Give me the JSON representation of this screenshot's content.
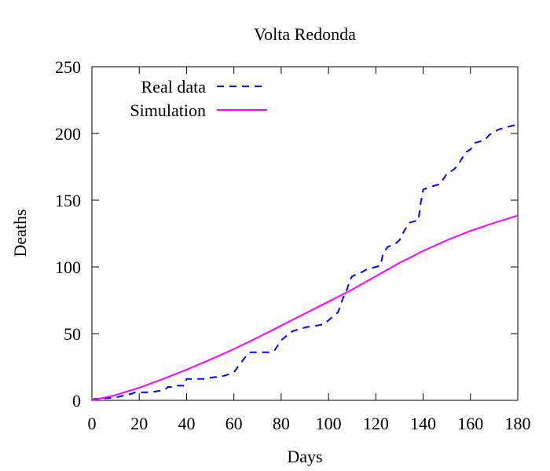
{
  "chart_data": {
    "type": "line",
    "title": "Volta Redonda",
    "xlabel": "Days",
    "ylabel": "Deaths",
    "xlim": [
      0,
      180
    ],
    "ylim": [
      0,
      250
    ],
    "xticks": [
      0,
      20,
      40,
      60,
      80,
      100,
      120,
      140,
      160,
      180
    ],
    "yticks": [
      0,
      50,
      100,
      150,
      200,
      250
    ],
    "grid": false,
    "legend_position": "top-left",
    "series": [
      {
        "name": "Real data",
        "style": "dashed",
        "color": "#0000ff",
        "x": [
          0,
          1,
          10,
          12,
          17,
          18,
          24,
          25,
          31,
          32,
          35,
          36,
          39,
          40,
          48,
          50,
          55,
          57,
          60,
          62,
          66,
          67,
          75,
          77,
          80,
          82,
          85,
          87,
          91,
          95,
          98,
          100,
          102,
          104,
          106,
          108,
          109,
          110,
          114,
          116,
          118,
          120,
          122,
          123,
          125,
          128,
          130,
          132,
          134,
          136,
          138,
          139,
          140,
          143,
          145,
          147,
          149,
          150,
          153,
          155,
          157,
          158,
          160,
          162,
          164,
          166,
          168,
          170,
          172,
          174,
          176,
          178,
          180
        ],
        "y": [
          0,
          1,
          2,
          3,
          5,
          6,
          6,
          6,
          8,
          10,
          10,
          11,
          11,
          16,
          16,
          17,
          18,
          19,
          21,
          26,
          35,
          36,
          36,
          37,
          45,
          48,
          52,
          53,
          55,
          56,
          57,
          60,
          63,
          66,
          76,
          84,
          90,
          93,
          96,
          98,
          99,
          100,
          101,
          110,
          115,
          117,
          120,
          127,
          133,
          134,
          135,
          148,
          158,
          160,
          161,
          162,
          167,
          170,
          173,
          177,
          183,
          186,
          188,
          193,
          194,
          195,
          199,
          201,
          203,
          204,
          205,
          206,
          206
        ]
      },
      {
        "name": "Simulation",
        "style": "solid",
        "color": "#ff00ff",
        "x": [
          0,
          10,
          20,
          30,
          40,
          50,
          60,
          70,
          80,
          90,
          100,
          110,
          120,
          130,
          140,
          150,
          160,
          170,
          180
        ],
        "y": [
          0,
          4,
          9.5,
          16,
          23,
          30.5,
          38.5,
          47,
          56,
          65,
          74,
          83,
          93,
          103,
          112,
          120,
          127,
          133,
          138.5
        ]
      }
    ]
  }
}
